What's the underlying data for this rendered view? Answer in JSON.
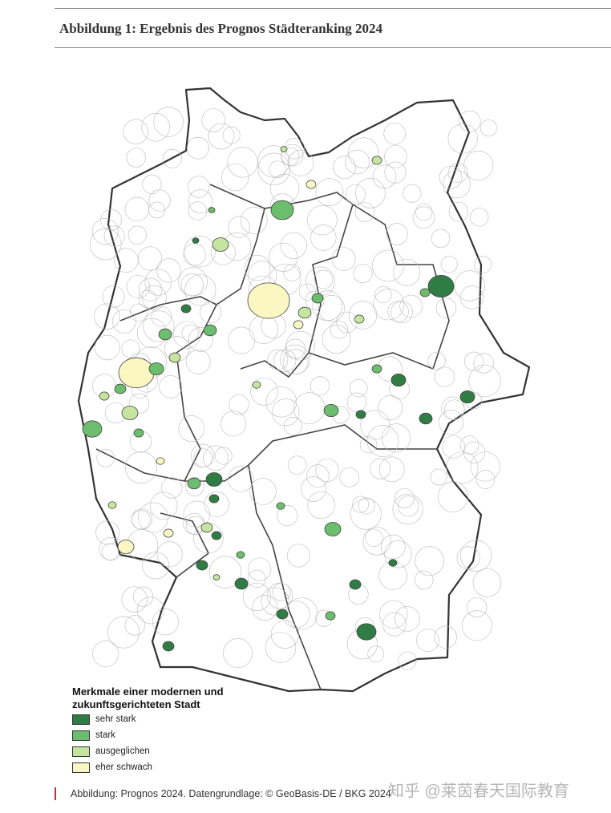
{
  "title": "Abbildung 1: Ergebnis des Prognos Städteranking 2024",
  "legend": {
    "title": "Merkmale einer modernen und zukunftsgerichteten Stadt",
    "items": [
      {
        "label": "sehr stark",
        "color": "#2f7d45"
      },
      {
        "label": "stark",
        "color": "#6cbd6e"
      },
      {
        "label": "ausgeglichen",
        "color": "#c5e4a0"
      },
      {
        "label": "eher schwach",
        "color": "#fbf7c2"
      }
    ]
  },
  "source": "Abbildung: Prognos 2024. Datengrundlage: © GeoBasis-DE / BKG 2024",
  "watermark": "知乎 @莱茵春天国际教育"
}
